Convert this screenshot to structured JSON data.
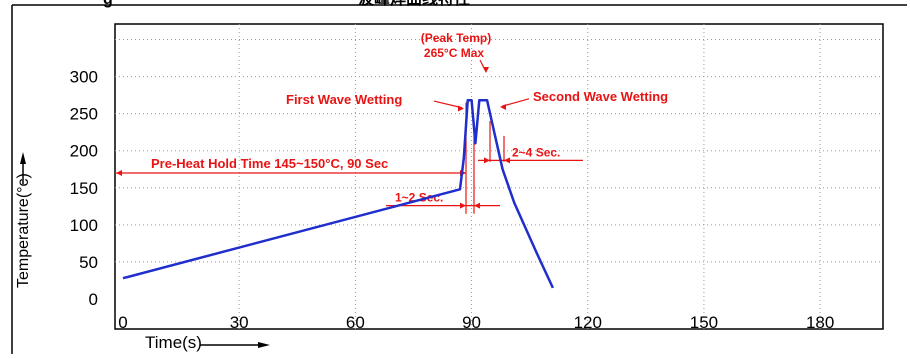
{
  "chart_data": {
    "type": "line",
    "title_fragments": {
      "left": "g",
      "right": "波峰焊曲线特性"
    },
    "xlabel": "Time(s)",
    "ylabel": "Temperature(°c)",
    "xlim": [
      0,
      185
    ],
    "ylim": [
      0,
      330
    ],
    "xticks": [
      0,
      30,
      60,
      90,
      120,
      150,
      180
    ],
    "yticks": [
      0,
      50,
      100,
      150,
      200,
      250,
      300
    ],
    "grid": true,
    "series": [
      {
        "color": "#1f2ecc",
        "x": [
          0,
          87,
          88,
          89,
          90,
          91,
          92,
          94,
          95,
          98,
          101,
          104,
          107,
          111
        ],
        "y": [
          28,
          148,
          190,
          268,
          268,
          210,
          268,
          268,
          245,
          175,
          130,
          95,
          60,
          15
        ]
      }
    ],
    "annotations": {
      "color": "#e81414",
      "preheat": "Pre-Heat Hold Time 145~150°C, 90 Sec",
      "first_wave": "First Wave Wetting",
      "second_wave": "Second Wave Wetting",
      "peak_line1": "(Peak Temp)",
      "peak_line2": "265°C Max",
      "interval_1_2": "1~2 Sec.",
      "interval_2_4": "2~4 Sec."
    }
  }
}
